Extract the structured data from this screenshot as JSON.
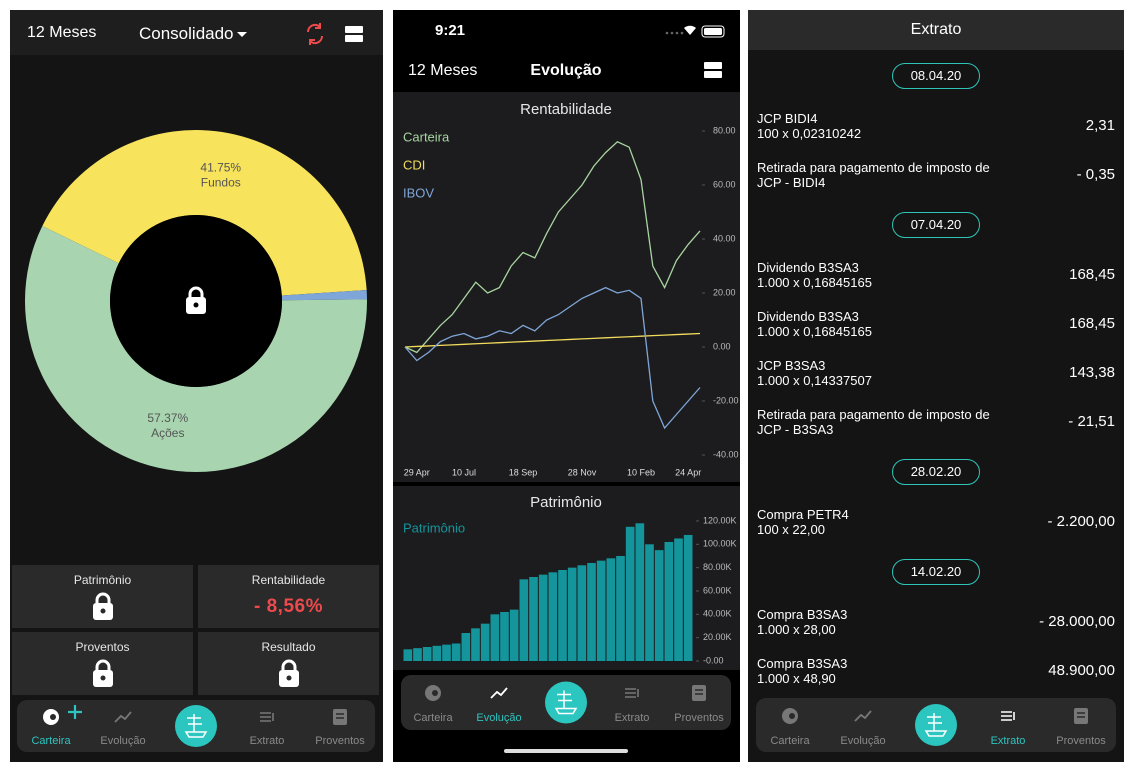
{
  "portfolio": {
    "period": "12 Meses",
    "view": "Consolidado",
    "allocation": {
      "type": "pie",
      "values": [
        41.75,
        0.88,
        57.37
      ],
      "value_labels": [
        "41.75%",
        null,
        "57.37%"
      ],
      "labels": [
        "Fundos",
        null,
        "Ações"
      ],
      "colors": [
        "#f7e35c",
        "#7fa6d8",
        "#a8d5b0"
      ]
    },
    "cards": [
      {
        "title": "Patrimônio"
      },
      {
        "title": "Rentabilidade",
        "value": "- 8,56%"
      },
      {
        "title": "Proventos"
      },
      {
        "title": "Resultado"
      }
    ],
    "tabs": [
      "Carteira",
      "Evolução",
      "Extrato",
      "Proventos"
    ]
  },
  "evolution": {
    "time": "9:21",
    "period": "12 Meses",
    "title": "Evolução",
    "returns": {
      "type": "line",
      "title": "Rentabilidade",
      "categories": [
        null,
        "29 Apr",
        null,
        null,
        null,
        "10 Jul",
        null,
        null,
        null,
        null,
        "18 Sep",
        null,
        null,
        null,
        null,
        "28 Nov",
        null,
        null,
        null,
        null,
        "10 Feb",
        null,
        null,
        null,
        "24 Apr",
        null
      ],
      "series": [
        {
          "name": "Carteira",
          "color": "#a8d5a0",
          "values": [
            0,
            -2,
            3,
            8,
            12,
            18,
            24,
            20,
            22,
            30,
            35,
            33,
            42,
            50,
            55,
            60,
            67,
            72,
            76,
            74,
            62,
            30,
            22,
            32,
            38,
            43
          ]
        },
        {
          "name": "CDI",
          "color": "#f2dc5d",
          "values": [
            0,
            0.2,
            0.4,
            0.6,
            0.8,
            1,
            1.2,
            1.4,
            1.6,
            1.8,
            2,
            2.2,
            2.4,
            2.6,
            2.8,
            3,
            3.2,
            3.4,
            3.6,
            3.8,
            4,
            4.2,
            4.4,
            4.6,
            4.8,
            5
          ]
        },
        {
          "name": "IBOV",
          "color": "#7fa6d8",
          "values": [
            0,
            -5,
            -2,
            2,
            4,
            5,
            3,
            4,
            6,
            5,
            8,
            6,
            10,
            12,
            15,
            18,
            20,
            22,
            20,
            21,
            18,
            -20,
            -30,
            -25,
            -20,
            -15
          ]
        }
      ],
      "ylim": [
        -44,
        88
      ],
      "yticks": [
        {
          "value": 80,
          "label": "80.00"
        },
        {
          "value": 60,
          "label": "60.00"
        },
        {
          "value": 40,
          "label": "40.00"
        },
        {
          "value": 20,
          "label": "20.00"
        },
        {
          "value": 0,
          "label": "0.00"
        },
        {
          "value": -20,
          "label": "-20.00"
        },
        {
          "value": -40,
          "label": "-40.00"
        }
      ]
    },
    "equity": {
      "type": "bar",
      "title": "Patrimônio",
      "series": [
        {
          "name": "Patrimônio",
          "color": "#14959b",
          "values": [
            10000,
            11000,
            12000,
            13000,
            14000,
            15000,
            24000,
            28000,
            32000,
            40000,
            42000,
            44000,
            70000,
            72000,
            74000,
            76000,
            78000,
            80000,
            82000,
            84000,
            86000,
            88000,
            90000,
            115000,
            118000,
            100000,
            95000,
            102000,
            105000,
            108000
          ]
        }
      ],
      "ylim": [
        -3000,
        124000
      ],
      "yticks": [
        {
          "value": 120000,
          "label": "120.00K"
        },
        {
          "value": 100000,
          "label": "100.00K"
        },
        {
          "value": 80000,
          "label": "80.00K"
        },
        {
          "value": 60000,
          "label": "60.00K"
        },
        {
          "value": 40000,
          "label": "40.00K"
        },
        {
          "value": 20000,
          "label": "20.00K"
        },
        {
          "value": 0,
          "label": "-0.00"
        }
      ]
    },
    "tabs": [
      "Carteira",
      "Evolução",
      "Extrato",
      "Proventos"
    ]
  },
  "statement": {
    "title": "Extrato",
    "groups": [
      {
        "date": "08.04.20",
        "items": [
          {
            "description": "JCP BIDI4",
            "detail": "100 x 0,02310242",
            "amount": "2,31"
          },
          {
            "description": "Retirada para pagamento de imposto de JCP - BIDI4",
            "amount": "- 0,35"
          }
        ]
      },
      {
        "date": "07.04.20",
        "items": [
          {
            "description": "Dividendo B3SA3",
            "detail": "1.000 x 0,16845165",
            "amount": "168,45"
          },
          {
            "description": "Dividendo B3SA3",
            "detail": "1.000 x 0,16845165",
            "amount": "168,45"
          },
          {
            "description": "JCP B3SA3",
            "detail": "1.000 x 0,14337507",
            "amount": "143,38"
          },
          {
            "description": "Retirada para pagamento de imposto de JCP - B3SA3",
            "amount": "- 21,51"
          }
        ]
      },
      {
        "date": "28.02.20",
        "items": [
          {
            "description": "Compra PETR4",
            "detail": "100 x 22,00",
            "amount": "- 2.200,00"
          }
        ]
      },
      {
        "date": "14.02.20",
        "items": [
          {
            "description": "Compra B3SA3",
            "detail": "1.000 x 28,00",
            "amount": "- 28.000,00"
          },
          {
            "description": "Compra B3SA3",
            "detail": "1.000 x 48,90",
            "amount": "48.900,00"
          }
        ]
      }
    ],
    "tabs": [
      "Carteira",
      "Evolução",
      "Extrato",
      "Proventos"
    ]
  }
}
